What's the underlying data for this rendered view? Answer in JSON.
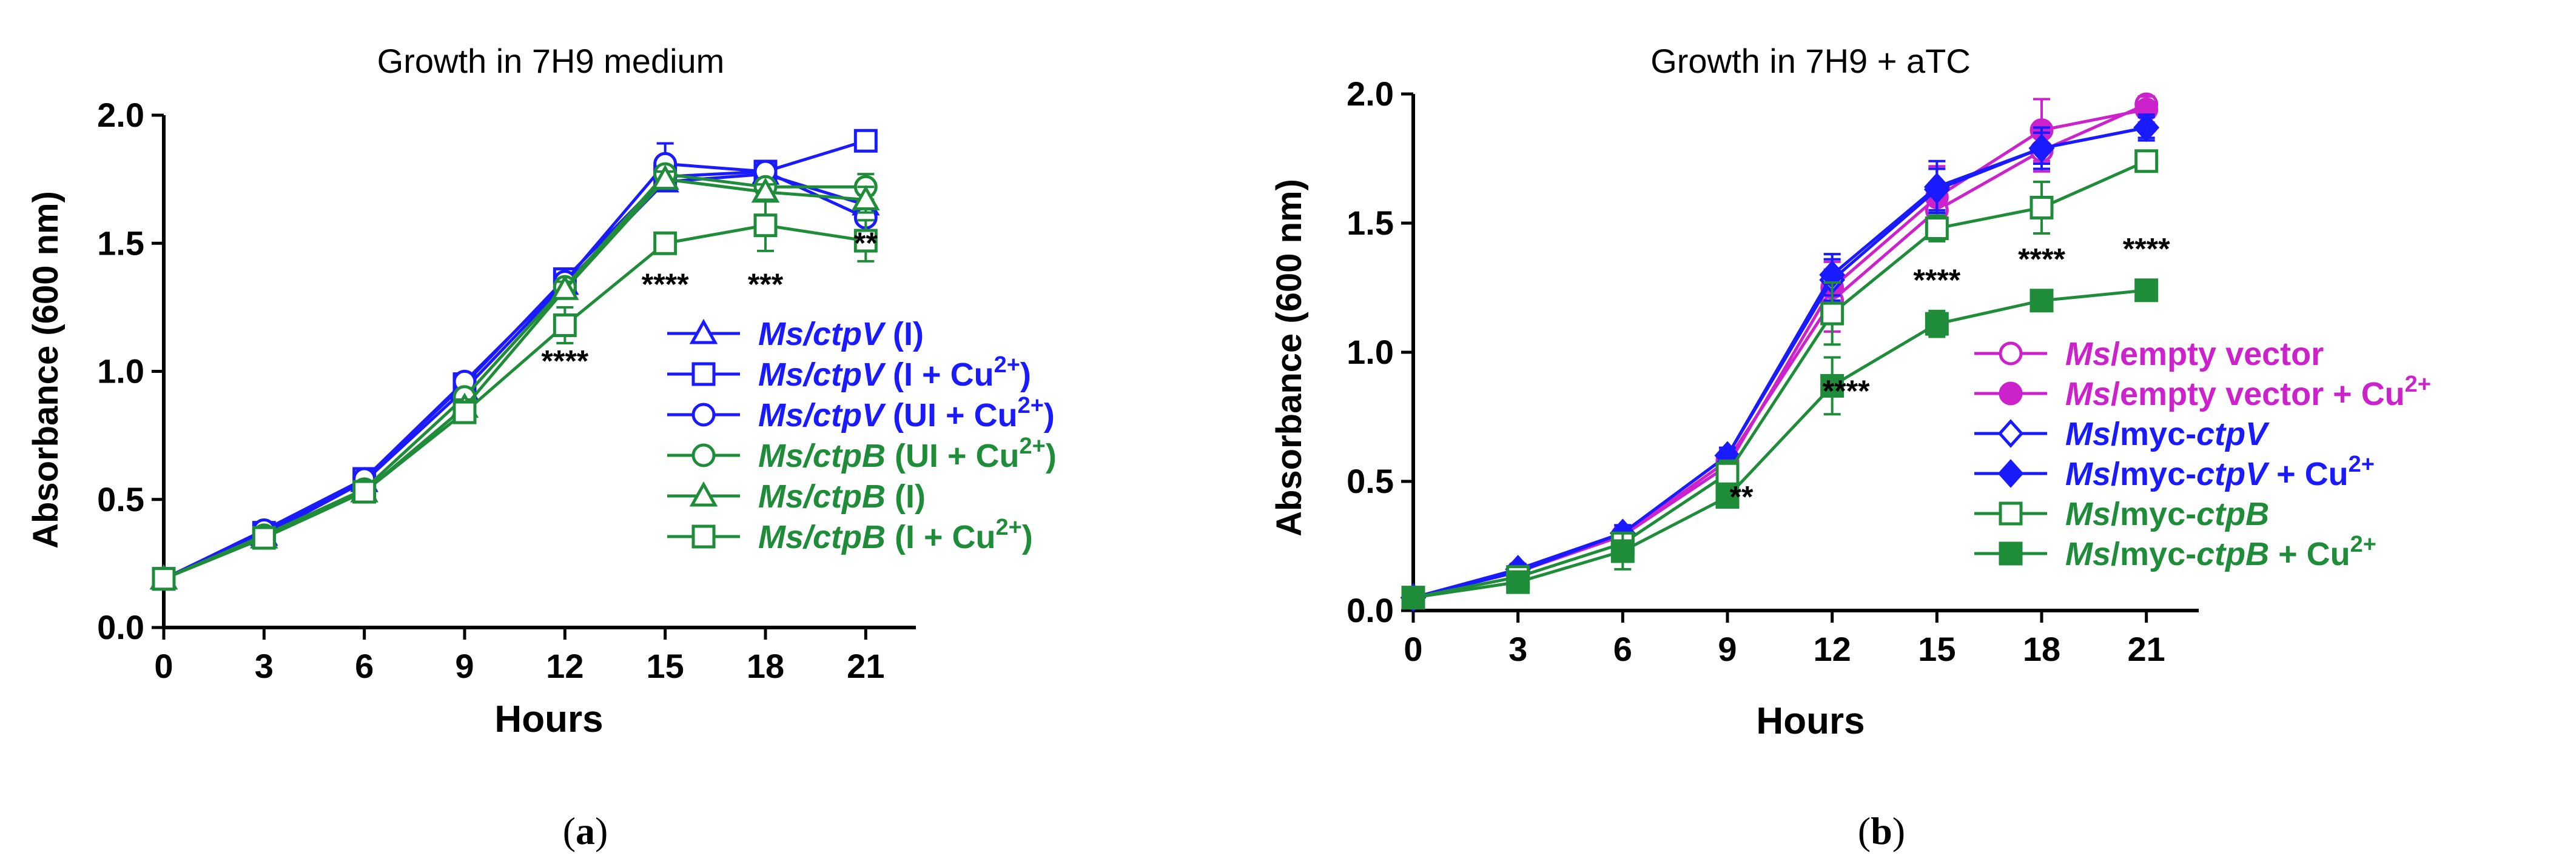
{
  "chart_data": [
    {
      "type": "line",
      "panel": "(a)",
      "panel_letter": "a",
      "title": "Growth in 7H9 medium",
      "xlabel": "Hours",
      "ylabel": "Absorbance (600 nm)",
      "xlim": [
        0,
        22.5
      ],
      "ylim": [
        0,
        2.0
      ],
      "xticks": [
        0,
        3,
        6,
        9,
        12,
        15,
        18,
        21
      ],
      "yticks": [
        "0.0",
        "0.5",
        "1.0",
        "1.5",
        "2.0"
      ],
      "x": [
        0,
        3,
        6,
        9,
        12,
        15,
        18,
        21
      ],
      "series": [
        {
          "name": "Ms/ctpV (I)",
          "label_italic": "Ms/ctpV",
          "label_plain": " (I)",
          "sup": "",
          "suffix": "",
          "color": "#1a1aff",
          "marker": "triangle",
          "filled": false,
          "values": [
            0.19,
            0.36,
            0.57,
            0.93,
            1.34,
            1.74,
            1.77,
            1.65
          ],
          "err": [
            0.02,
            0.02,
            0.02,
            0.03,
            0.03,
            0.03,
            0.03,
            0.04
          ]
        },
        {
          "name": "Ms/ctpV (I + Cu2+)",
          "label_italic": "Ms/ctpV",
          "label_plain": " (I + Cu",
          "sup": "2+",
          "suffix": ")",
          "color": "#1a1aff",
          "marker": "square",
          "filled": false,
          "values": [
            0.19,
            0.37,
            0.58,
            0.95,
            1.36,
            1.76,
            1.78,
            1.9
          ],
          "err": [
            0.02,
            0.02,
            0.02,
            0.03,
            0.03,
            0.04,
            0.03,
            0.03
          ]
        },
        {
          "name": "Ms/ctpV (UI + Cu2+)",
          "label_italic": "Ms/ctpV",
          "label_plain": " (UI + Cu",
          "sup": "2+",
          "suffix": ")",
          "color": "#1a1aff",
          "marker": "circle",
          "filled": false,
          "values": [
            0.19,
            0.38,
            0.58,
            0.96,
            1.35,
            1.81,
            1.78,
            1.6
          ],
          "err": [
            0.02,
            0.02,
            0.02,
            0.03,
            0.03,
            0.08,
            0.03,
            0.05
          ]
        },
        {
          "name": "Ms/ctpB (UI + Cu2+)",
          "label_italic": "Ms/ctpB",
          "label_plain": " (UI + Cu",
          "sup": "2+",
          "suffix": ")",
          "color": "#1f8c3a",
          "marker": "circle",
          "filled": false,
          "values": [
            0.19,
            0.36,
            0.54,
            0.9,
            1.33,
            1.77,
            1.72,
            1.72
          ],
          "err": [
            0.02,
            0.02,
            0.02,
            0.03,
            0.03,
            0.03,
            0.03,
            0.05
          ]
        },
        {
          "name": "Ms/ctpB (I)",
          "label_italic": "Ms/ctpB",
          "label_plain": " (I)",
          "sup": "",
          "suffix": "",
          "color": "#1f8c3a",
          "marker": "triangle",
          "filled": false,
          "values": [
            0.19,
            0.35,
            0.53,
            0.86,
            1.32,
            1.75,
            1.7,
            1.67
          ],
          "err": [
            0.02,
            0.02,
            0.02,
            0.03,
            0.03,
            0.03,
            0.03,
            0.05
          ]
        },
        {
          "name": "Ms/ctpB (I + Cu2+)",
          "label_italic": "Ms/ctpB",
          "label_plain": " (I + Cu",
          "sup": "2+",
          "suffix": ")",
          "color": "#1f8c3a",
          "marker": "square",
          "filled": false,
          "values": [
            0.19,
            0.35,
            0.53,
            0.84,
            1.18,
            1.5,
            1.57,
            1.51
          ],
          "err": [
            0.02,
            0.02,
            0.02,
            0.04,
            0.07,
            0.04,
            0.1,
            0.08
          ]
        }
      ],
      "annotations": [
        {
          "text": "****",
          "x": 12,
          "y": 1.0
        },
        {
          "text": "****",
          "x": 15,
          "y": 1.3
        },
        {
          "text": "***",
          "x": 18,
          "y": 1.3
        },
        {
          "text": "**",
          "x": 21,
          "y": 1.46
        }
      ]
    },
    {
      "type": "line",
      "panel": "(b)",
      "panel_letter": "b",
      "title": "Growth in 7H9 + aTC",
      "xlabel": "Hours",
      "ylabel": "Absorbance (600 nm)",
      "xlim": [
        0,
        22.5
      ],
      "ylim": [
        0,
        2.0
      ],
      "xticks": [
        0,
        3,
        6,
        9,
        12,
        15,
        18,
        21
      ],
      "yticks": [
        "0.0",
        "0.5",
        "1.0",
        "1.5",
        "2.0"
      ],
      "x": [
        0,
        3,
        6,
        9,
        12,
        15,
        18,
        21
      ],
      "series": [
        {
          "name": "Ms/empty vector",
          "label_italic": "Ms",
          "label_plain": "/empty vector",
          "label_italic2": "",
          "sup": "",
          "suffix": "",
          "color": "#cc22cc",
          "marker": "circle",
          "filled": false,
          "values": [
            0.05,
            0.15,
            0.29,
            0.58,
            1.2,
            1.55,
            1.78,
            1.96
          ],
          "err": [
            0.01,
            0.02,
            0.03,
            0.04,
            0.12,
            0.1,
            0.08,
            0.03
          ]
        },
        {
          "name": "Ms/empty vector + Cu2+",
          "label_italic": "Ms",
          "label_plain": "/empty vector + Cu",
          "label_italic2": "",
          "sup": "2+",
          "suffix": "",
          "color": "#cc22cc",
          "marker": "circle",
          "filled": true,
          "values": [
            0.05,
            0.15,
            0.29,
            0.56,
            1.25,
            1.6,
            1.86,
            1.94
          ],
          "err": [
            0.01,
            0.02,
            0.03,
            0.04,
            0.1,
            0.12,
            0.12,
            0.05
          ]
        },
        {
          "name": "Ms/myc-ctpV",
          "label_italic": "Ms",
          "label_plain": "/myc-",
          "label_italic2": "ctpV",
          "sup": "",
          "suffix": "",
          "color": "#1a1aff",
          "marker": "diamond",
          "filled": false,
          "values": [
            0.05,
            0.15,
            0.3,
            0.6,
            1.28,
            1.63,
            1.79,
            1.87
          ],
          "err": [
            0.01,
            0.02,
            0.03,
            0.03,
            0.08,
            0.08,
            0.06,
            0.05
          ]
        },
        {
          "name": "Ms/myc-ctpV + Cu2+",
          "label_italic": "Ms",
          "label_plain": "/myc-",
          "label_italic2": "ctpV",
          "plain_after": " + Cu",
          "sup": "2+",
          "suffix": "",
          "color": "#1a1aff",
          "marker": "diamond",
          "filled": true,
          "values": [
            0.05,
            0.16,
            0.3,
            0.6,
            1.3,
            1.64,
            1.79,
            1.87
          ],
          "err": [
            0.01,
            0.02,
            0.03,
            0.03,
            0.08,
            0.1,
            0.08,
            0.04
          ]
        },
        {
          "name": "Ms/myc-ctpB",
          "label_italic": "Ms",
          "label_plain": "/myc-",
          "label_italic2": "ctpB",
          "sup": "",
          "suffix": "",
          "color": "#1f8c3a",
          "marker": "square",
          "filled": false,
          "values": [
            0.05,
            0.13,
            0.26,
            0.53,
            1.15,
            1.48,
            1.56,
            1.74
          ],
          "err": [
            0.01,
            0.02,
            0.04,
            0.05,
            0.12,
            0.05,
            0.1,
            0.03
          ]
        },
        {
          "name": "Ms/myc-ctpB + Cu2+",
          "label_italic": "Ms",
          "label_plain": "/myc-",
          "label_italic2": "ctpB",
          "plain_after": " + Cu",
          "sup": "2+",
          "suffix": "",
          "color": "#1f8c3a",
          "marker": "square",
          "filled": true,
          "values": [
            0.05,
            0.11,
            0.23,
            0.44,
            0.87,
            1.11,
            1.2,
            1.24
          ],
          "err": [
            0.01,
            0.02,
            0.07,
            0.04,
            0.11,
            0.05,
            0.03,
            0.04
          ]
        }
      ],
      "annotations": [
        {
          "text": "**",
          "x": 9.4,
          "y": 0.4
        },
        {
          "text": "****",
          "x": 12.4,
          "y": 0.81
        },
        {
          "text": "****",
          "x": 15,
          "y": 1.24
        },
        {
          "text": "****",
          "x": 18,
          "y": 1.32
        },
        {
          "text": "****",
          "x": 21,
          "y": 1.36
        }
      ]
    }
  ]
}
